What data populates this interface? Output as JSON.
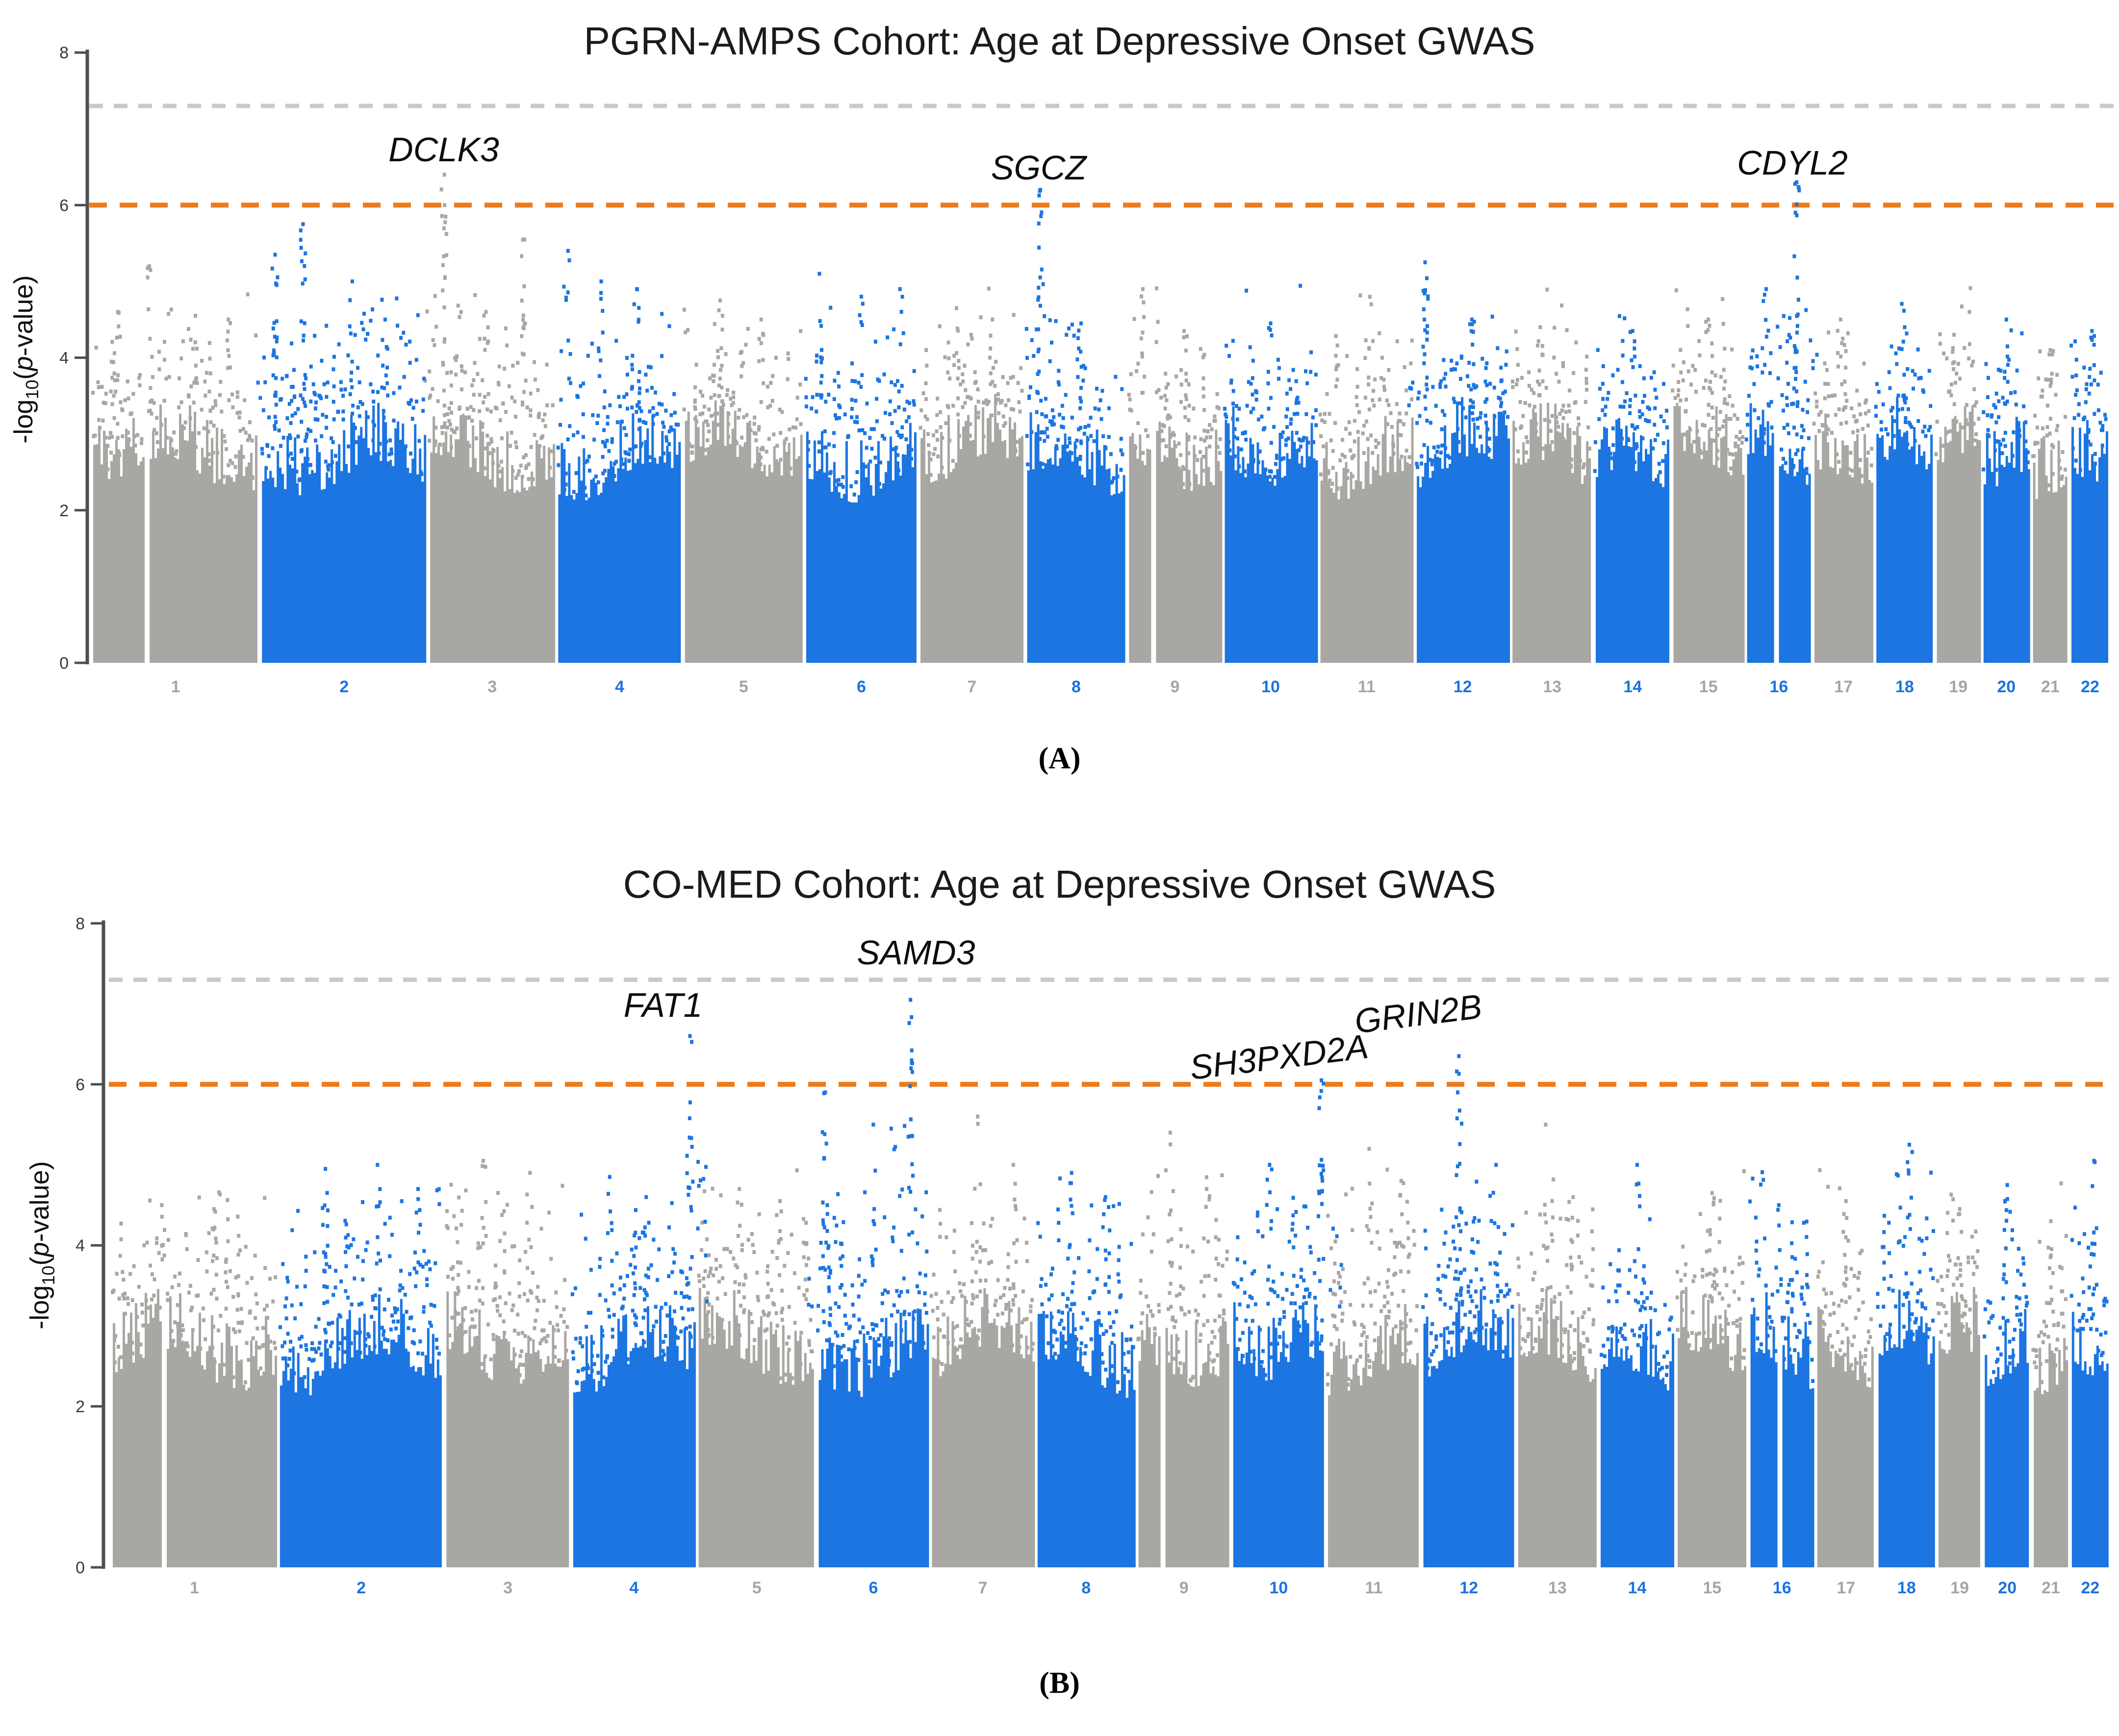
{
  "page": {
    "background": "#ffffff"
  },
  "colors": {
    "odd_chrom": "#a9a7a4",
    "even_chrom": "#1c75e0",
    "odd_tick_label": "#a5a5a5",
    "even_tick_label": "#1a73e0",
    "suggestive_line": "#ed7a1c",
    "genomewide_line": "#c9c9c9",
    "axis": "#4f4f4f",
    "y_tick_label": "#3a3a3a",
    "title": "#1b1b1b",
    "gene_label": "#0d0d0d"
  },
  "y_axis_label": {
    "pre": "-log",
    "sub": "10",
    "open": "(",
    "p": "p",
    "post": "-value)"
  },
  "chart_data": {
    "type": "scatter",
    "subtype": "manhattan_multi_panel",
    "ylabel": "-log10(p-value)",
    "ylim": [
      0,
      8
    ],
    "yticks": [
      0,
      2,
      4,
      6,
      8
    ],
    "grid": false,
    "legend": "none",
    "thresholds": {
      "genome_wide_neg_log10_p": 7.3,
      "suggestive_neg_log10_p": 6.0
    },
    "chromosomes": [
      {
        "name": "1",
        "rel_size": 239,
        "shade": "odd",
        "gap_frac": 0.3
      },
      {
        "name": "2",
        "rel_size": 238,
        "shade": "even"
      },
      {
        "name": "3",
        "rel_size": 180,
        "shade": "odd"
      },
      {
        "name": "4",
        "rel_size": 178,
        "shade": "even"
      },
      {
        "name": "5",
        "rel_size": 170,
        "shade": "odd"
      },
      {
        "name": "6",
        "rel_size": 160,
        "shade": "even"
      },
      {
        "name": "7",
        "rel_size": 149,
        "shade": "odd"
      },
      {
        "name": "8",
        "rel_size": 142,
        "shade": "even"
      },
      {
        "name": "9",
        "rel_size": 133,
        "shade": "odd",
        "gap_frac": 0.23
      },
      {
        "name": "10",
        "rel_size": 133,
        "shade": "even"
      },
      {
        "name": "11",
        "rel_size": 134,
        "shade": "odd"
      },
      {
        "name": "12",
        "rel_size": 133,
        "shade": "even"
      },
      {
        "name": "13",
        "rel_size": 115,
        "shade": "odd"
      },
      {
        "name": "14",
        "rel_size": 107,
        "shade": "even"
      },
      {
        "name": "15",
        "rel_size": 101,
        "shade": "odd"
      },
      {
        "name": "16",
        "rel_size": 92,
        "shade": "even",
        "gap_frac": 0.4
      },
      {
        "name": "17",
        "rel_size": 84,
        "shade": "odd"
      },
      {
        "name": "18",
        "rel_size": 82,
        "shade": "even"
      },
      {
        "name": "19",
        "rel_size": 62,
        "shade": "odd"
      },
      {
        "name": "20",
        "rel_size": 66,
        "shade": "even"
      },
      {
        "name": "21",
        "rel_size": 50,
        "shade": "odd"
      },
      {
        "name": "22",
        "rel_size": 54,
        "shade": "even"
      }
    ],
    "panels": [
      {
        "id": "A",
        "label": "(A)",
        "title": "PGRN-AMPS Cohort: Age at Depressive Onset GWAS",
        "seed": 9101,
        "hits": [
          {
            "gene": "DCLK3",
            "chr": "3",
            "neg_log10_p": 6.4,
            "peak_frac": 0.115,
            "label_x": 905,
            "label_y": 345,
            "rotate": 0
          },
          {
            "gene": "SGCZ",
            "chr": "8",
            "neg_log10_p": 6.2,
            "peak_frac": 0.135,
            "label_x": 2118,
            "label_y": 382,
            "rotate": 0
          },
          {
            "gene": "CDYL2",
            "chr": "16",
            "neg_log10_p": 6.3,
            "peak_frac": 0.78,
            "label_x": 3655,
            "label_y": 372,
            "rotate": 0
          }
        ],
        "peaks": [
          [
            1,
            0.15,
            4.6,
            0
          ],
          [
            1,
            0.34,
            5.2,
            0
          ],
          [
            1,
            0.62,
            4.55,
            0
          ],
          [
            1,
            0.82,
            4.5,
            0
          ],
          [
            2,
            0.08,
            5.35,
            1
          ],
          [
            2,
            0.25,
            5.75,
            1
          ],
          [
            2,
            0.55,
            5.0,
            0
          ],
          [
            2,
            0.75,
            4.5,
            0
          ],
          [
            3,
            0.115,
            6.4,
            1
          ],
          [
            3,
            0.45,
            4.6,
            0
          ],
          [
            3,
            0.76,
            5.55,
            1
          ],
          [
            4,
            0.08,
            5.4,
            0
          ],
          [
            4,
            0.35,
            5.0,
            0
          ],
          [
            4,
            0.64,
            4.9,
            0
          ],
          [
            5,
            0.3,
            4.75,
            0
          ],
          [
            5,
            0.65,
            4.5,
            0
          ],
          [
            6,
            0.12,
            5.1,
            0
          ],
          [
            6,
            0.5,
            4.8,
            0
          ],
          [
            6,
            0.85,
            4.9,
            0
          ],
          [
            7,
            0.35,
            4.65,
            0
          ],
          [
            7,
            0.7,
            4.5,
            0
          ],
          [
            8,
            0.135,
            6.2,
            1
          ],
          [
            8,
            0.55,
            4.45,
            0
          ],
          [
            9,
            0.15,
            4.9,
            0
          ],
          [
            9,
            0.6,
            4.35,
            0
          ],
          [
            10,
            0.5,
            4.45,
            0
          ],
          [
            11,
            0.55,
            4.7,
            0
          ],
          [
            12,
            0.09,
            5.25,
            1
          ],
          [
            12,
            0.6,
            4.5,
            0
          ],
          [
            13,
            0.35,
            4.4,
            0
          ],
          [
            14,
            0.5,
            4.35,
            0
          ],
          [
            15,
            0.5,
            4.5,
            0
          ],
          [
            16,
            0.3,
            4.9,
            0
          ],
          [
            16,
            0.78,
            6.3,
            1
          ],
          [
            17,
            0.45,
            4.5,
            0
          ],
          [
            18,
            0.5,
            4.4,
            0
          ],
          [
            19,
            0.4,
            4.3,
            0
          ],
          [
            20,
            0.5,
            4.5,
            0
          ],
          [
            21,
            0.5,
            4.1,
            0
          ],
          [
            22,
            0.55,
            4.35,
            0
          ]
        ]
      },
      {
        "id": "B",
        "label": "(B)",
        "title": "CO-MED Cohort: Age at Depressive Onset GWAS",
        "seed": 4202,
        "hits": [
          {
            "gene": "FAT1",
            "chr": "4",
            "neg_log10_p": 6.6,
            "peak_frac": 0.96,
            "label_x": 1352,
            "label_y": 2090,
            "rotate": 0
          },
          {
            "gene": "SAMD3",
            "chr": "6",
            "neg_log10_p": 7.05,
            "peak_frac": 0.84,
            "label_x": 1868,
            "label_y": 1983,
            "rotate": 0
          },
          {
            "gene": "SH3PXD2A",
            "chr": "10",
            "neg_log10_p": 6.05,
            "peak_frac": 0.97,
            "label_x": 2608,
            "label_y": 2196,
            "rotate": -7
          },
          {
            "gene": "GRIN2B",
            "chr": "12",
            "neg_log10_p": 6.35,
            "peak_frac": 0.39,
            "label_x": 2892,
            "label_y": 2108,
            "rotate": -7
          }
        ],
        "peaks": [
          [
            1,
            0.3,
            4.5,
            0
          ],
          [
            1,
            0.62,
            4.45,
            0
          ],
          [
            2,
            0.28,
            4.95,
            0
          ],
          [
            2,
            0.6,
            5.0,
            0
          ],
          [
            2,
            0.85,
            4.7,
            0
          ],
          [
            3,
            0.3,
            5.05,
            0
          ],
          [
            3,
            0.68,
            4.9,
            0
          ],
          [
            4,
            0.3,
            4.85,
            0
          ],
          [
            4,
            0.6,
            4.6,
            0
          ],
          [
            4,
            0.96,
            6.6,
            1
          ],
          [
            5,
            0.35,
            4.7,
            0
          ],
          [
            5,
            0.7,
            4.55,
            0
          ],
          [
            6,
            0.06,
            5.9,
            1
          ],
          [
            6,
            0.5,
            5.5,
            0
          ],
          [
            6,
            0.84,
            7.05,
            1
          ],
          [
            7,
            0.45,
            5.6,
            0
          ],
          [
            7,
            0.8,
            5.0,
            0
          ],
          [
            8,
            0.35,
            4.9,
            0
          ],
          [
            8,
            0.7,
            4.6,
            0
          ],
          [
            9,
            0.35,
            5.4,
            0
          ],
          [
            9,
            0.75,
            4.7,
            0
          ],
          [
            10,
            0.4,
            5.0,
            0
          ],
          [
            10,
            0.97,
            6.05,
            1
          ],
          [
            11,
            0.45,
            5.2,
            0
          ],
          [
            11,
            0.8,
            4.8,
            0
          ],
          [
            12,
            0.39,
            6.35,
            1
          ],
          [
            12,
            0.8,
            5.0,
            0
          ],
          [
            13,
            0.35,
            5.5,
            0
          ],
          [
            13,
            0.7,
            4.6,
            0
          ],
          [
            14,
            0.5,
            5.0,
            0
          ],
          [
            15,
            0.5,
            4.65,
            0
          ],
          [
            16,
            0.45,
            4.5,
            0
          ],
          [
            17,
            0.5,
            4.55,
            0
          ],
          [
            18,
            0.55,
            5.25,
            0
          ],
          [
            19,
            0.5,
            4.45,
            0
          ],
          [
            20,
            0.5,
            4.75,
            0
          ],
          [
            21,
            0.5,
            4.3,
            0
          ],
          [
            22,
            0.6,
            5.05,
            0
          ]
        ]
      }
    ]
  }
}
